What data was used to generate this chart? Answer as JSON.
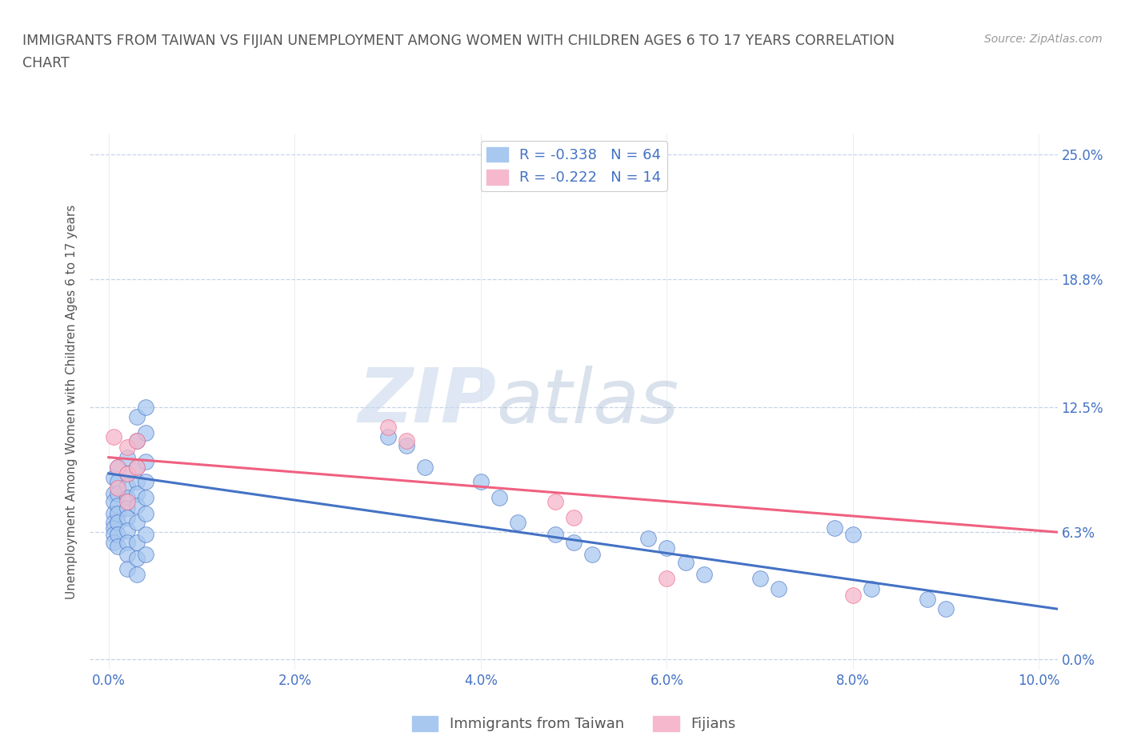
{
  "title_line1": "IMMIGRANTS FROM TAIWAN VS FIJIAN UNEMPLOYMENT AMONG WOMEN WITH CHILDREN AGES 6 TO 17 YEARS CORRELATION",
  "title_line2": "CHART",
  "source": "Source: ZipAtlas.com",
  "xlabel_ticks": [
    "0.0%",
    "2.0%",
    "4.0%",
    "6.0%",
    "8.0%",
    "10.0%"
  ],
  "xlabel_vals": [
    0.0,
    0.02,
    0.04,
    0.06,
    0.08,
    0.1
  ],
  "ylabel_ticks": [
    "0.0%",
    "6.3%",
    "12.5%",
    "18.8%",
    "25.0%"
  ],
  "ylabel_vals": [
    0.0,
    0.063,
    0.125,
    0.188,
    0.25
  ],
  "xlim": [
    -0.002,
    0.102
  ],
  "ylim": [
    -0.005,
    0.26
  ],
  "ylabel": "Unemployment Among Women with Children Ages 6 to 17 years",
  "legend_labels": [
    "Immigrants from Taiwan",
    "Fijians"
  ],
  "taiwan_color": "#a8c8f0",
  "fijian_color": "#f5b8cc",
  "taiwan_line_color": "#4472c4",
  "fijian_line_color": "#f06080",
  "r_taiwan": -0.338,
  "n_taiwan": 64,
  "r_fijian": -0.222,
  "n_fijian": 14,
  "taiwan_scatter": [
    [
      0.0005,
      0.09
    ],
    [
      0.0005,
      0.082
    ],
    [
      0.0005,
      0.078
    ],
    [
      0.0005,
      0.072
    ],
    [
      0.0005,
      0.068
    ],
    [
      0.0005,
      0.065
    ],
    [
      0.0005,
      0.062
    ],
    [
      0.0005,
      0.058
    ],
    [
      0.001,
      0.095
    ],
    [
      0.001,
      0.088
    ],
    [
      0.001,
      0.082
    ],
    [
      0.001,
      0.076
    ],
    [
      0.001,
      0.072
    ],
    [
      0.001,
      0.068
    ],
    [
      0.001,
      0.062
    ],
    [
      0.001,
      0.056
    ],
    [
      0.002,
      0.1
    ],
    [
      0.002,
      0.092
    ],
    [
      0.002,
      0.086
    ],
    [
      0.002,
      0.08
    ],
    [
      0.002,
      0.075
    ],
    [
      0.002,
      0.07
    ],
    [
      0.002,
      0.064
    ],
    [
      0.002,
      0.058
    ],
    [
      0.002,
      0.052
    ],
    [
      0.002,
      0.045
    ],
    [
      0.003,
      0.12
    ],
    [
      0.003,
      0.108
    ],
    [
      0.003,
      0.095
    ],
    [
      0.003,
      0.088
    ],
    [
      0.003,
      0.082
    ],
    [
      0.003,
      0.076
    ],
    [
      0.003,
      0.068
    ],
    [
      0.003,
      0.058
    ],
    [
      0.003,
      0.05
    ],
    [
      0.003,
      0.042
    ],
    [
      0.004,
      0.125
    ],
    [
      0.004,
      0.112
    ],
    [
      0.004,
      0.098
    ],
    [
      0.004,
      0.088
    ],
    [
      0.004,
      0.08
    ],
    [
      0.004,
      0.072
    ],
    [
      0.004,
      0.062
    ],
    [
      0.004,
      0.052
    ],
    [
      0.03,
      0.11
    ],
    [
      0.032,
      0.106
    ],
    [
      0.034,
      0.095
    ],
    [
      0.04,
      0.088
    ],
    [
      0.042,
      0.08
    ],
    [
      0.044,
      0.068
    ],
    [
      0.048,
      0.062
    ],
    [
      0.05,
      0.058
    ],
    [
      0.052,
      0.052
    ],
    [
      0.058,
      0.06
    ],
    [
      0.06,
      0.055
    ],
    [
      0.062,
      0.048
    ],
    [
      0.064,
      0.042
    ],
    [
      0.07,
      0.04
    ],
    [
      0.072,
      0.035
    ],
    [
      0.078,
      0.065
    ],
    [
      0.08,
      0.062
    ],
    [
      0.082,
      0.035
    ],
    [
      0.088,
      0.03
    ],
    [
      0.09,
      0.025
    ]
  ],
  "fijian_scatter": [
    [
      0.0005,
      0.11
    ],
    [
      0.001,
      0.095
    ],
    [
      0.001,
      0.085
    ],
    [
      0.002,
      0.105
    ],
    [
      0.002,
      0.092
    ],
    [
      0.002,
      0.078
    ],
    [
      0.003,
      0.108
    ],
    [
      0.003,
      0.095
    ],
    [
      0.03,
      0.115
    ],
    [
      0.032,
      0.108
    ],
    [
      0.048,
      0.078
    ],
    [
      0.05,
      0.07
    ],
    [
      0.06,
      0.04
    ],
    [
      0.08,
      0.032
    ]
  ],
  "taiwan_trendline_x": [
    0.0,
    0.102
  ],
  "taiwan_trendline_y": [
    0.092,
    0.025
  ],
  "fijian_trendline_x": [
    0.0,
    0.102
  ],
  "fijian_trendline_y": [
    0.1,
    0.063
  ],
  "watermark_zip": "ZIP",
  "watermark_atlas": "atlas",
  "background_color": "#ffffff",
  "title_color": "#555555",
  "label_color": "#4472c4",
  "tick_color": "#4472c4",
  "grid_color_h": "#c8d4e8",
  "grid_color_v": "#e0e8f0"
}
